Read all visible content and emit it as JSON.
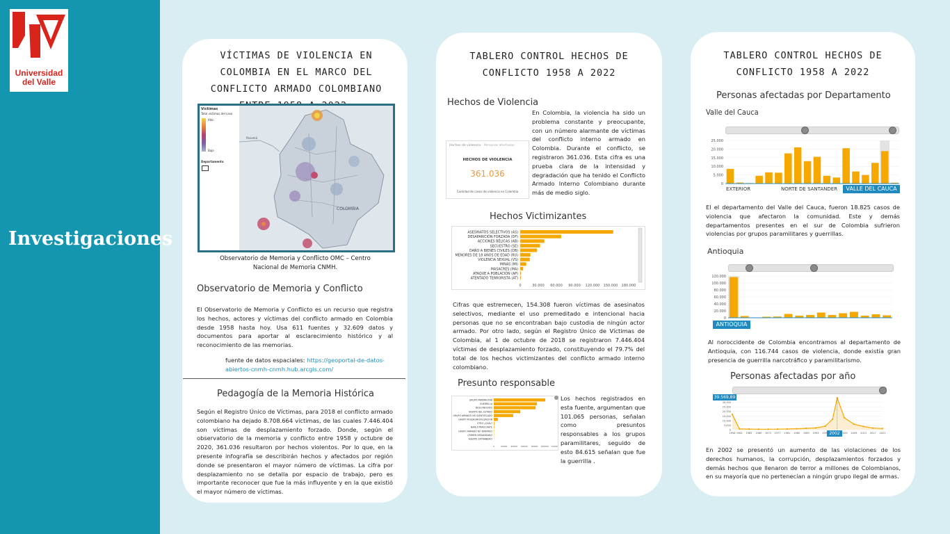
{
  "sidebar": {
    "logo_line1": "Universidad",
    "logo_line2": "del Valle",
    "title": "Investigaciones"
  },
  "panel1": {
    "title": "VÍCTIMAS DE VIOLENCIA EN COLOMBIA EN EL MARCO DEL CONFLICTO ARMADO COLOMBIANO ENTRE 1958 A 2022.",
    "map": {
      "legend_title": "Víctimas",
      "legend_sub": "Total víctimas del caso",
      "legend_high": "Alto",
      "legend_low": "Bajo",
      "legend_dept": "Departamento",
      "label_colombia": "COLOMBIA",
      "label_panama": "Panamá"
    },
    "caption": "Observatorio de Memoria y Conflicto OMC – Centro Nacional de Memoria CNMH.",
    "section1_heading": "Observatorio de Memoria y Conflicto",
    "section1_text": "El Observatorio de Memoria y Conflicto es un recurso que registra los hechos, actores y víctimas del conflicto armado en Colombia desde 1958 hasta hoy. Usa 611 fuentes y 32.609 datos y documentos para aportar al esclarecimiento histórico y al reconocimiento de las memorias.",
    "source_label": "fuente de datos espaciales: ",
    "source_link": "https://geoportal-de-datos-abiertos-cnmh-cnmh.hub.arcgis.com/",
    "section2_heading": "Pedagogía de la Memoria Histórica",
    "section2_text": "Según el Registro Único de Víctimas, para 2018 el conflicto armado colombiano ha dejado 8.708.664 víctimas, de las cuales 7.446.404 son víctimas de desplazamiento forzado. Donde, según el observatorio de la memoria y conflicto entre 1958 y octubre de 2020, 361.036 resultaron por hechos violentos. Por lo que, en la presente infografía se describirán hechos y afectados por región donde se presentaron el mayor número de víctimas. La cifra por desplazamiento no se detalla por espacio de trabajo, pero es importante reconocer que fue la más influyente y en la que existió el mayor número de víctimas."
  },
  "panel2": {
    "title": "TABLERO CONTROL HECHOS DE CONFLICTO 1958 A 2022",
    "hechos_heading": "Hechos de Violencia",
    "kpi_tab1": "Hechos de violencia",
    "kpi_tab2": "Personas afectadas",
    "kpi_label": "HECHOS DE VIOLENCIA",
    "kpi_value": "361.036",
    "kpi_caption": "Cantidad de casos de violencia en Colombia",
    "hechos_text": "En Colombia, la violencia ha sido un problema constante y preocupante, con un número alarmante de víctimas del conflicto interno armado en Colombia. Durante el conflicto, se registraron 361.036. Esta cifra es una prueba clara de la intensidad y degradación que ha tenido el Conflicto Armado Interno Colombiano durante más de medio siglo.",
    "victimizantes_heading": "Hechos Victimizantes",
    "victimizantes_text": "Cifras que estremecen, 154.308 fueron víctimas de asesinatos selectivos, mediante el uso premeditado e intencional hacia personas que no se encontraban bajo custodia de ningún actor armado. Por otro lado, según el Registro Único de Víctimas de Colombia, al 1 de octubre de 2018 se registraron 7.446.404 víctimas de desplazamiento forzado, constituyendo el 79.7% del total de los hechos victimizantes del conflicto armado interno colombiano.",
    "responsable_heading": "Presunto responsable",
    "responsable_text": "Los hechos registrados en esta fuente, argumentan que 101.065 personas, señalan como presuntos responsables a los grupos paramilitares, seguido de esto 84.615 señalan que fue la guerrilla ."
  },
  "panel3": {
    "title": "TABLERO CONTROL HECHOS DE CONFLICTO 1958 A 2022",
    "dept_heading": "Personas afectadas por Departamento",
    "valle_heading": "Valle del Cauca",
    "valle_label_left": "EXTERIOR",
    "valle_label_mid": "NORTE DE SANTANDER",
    "valle_tag": "VALLE DEL CAUCA",
    "valle_text": "El el departamento del Valle del Cauca, fueron 18.825 casos de violencia que afectaron la comunidad. Este y demás departamentos presentes en el sur de Colombia sufrieron violencias por grupos paramilitares y guerrillas.",
    "antioquia_heading": "Antioquia",
    "antioquia_tag": "ANTIOQUIA",
    "antioquia_text": "Al noroccidente de Colombia encontramos al departamento de Antioquia, con 116.744 casos de violencia, donde existía gran presencia de guerrilla narcotráfico y paramilitarismo.",
    "year_heading": "Personas afectadas por año",
    "year_peak_label": "39.569,89",
    "year_tag": "2002",
    "year_text": "En 2002 se presentó un aumento de las violaciones de los derechos humanos, la corrupción, desplazamientos forzados y demás hechos que llenaron de terror a millones de Colombianos, en su mayoría que no pertenecían a ningún grupo ilegal de armas."
  },
  "chart_data": [
    {
      "type": "bar",
      "orientation": "horizontal",
      "categories": [
        "ASESINATOS SELECTIVOS (AS)",
        "DESAPARICIÓN FORZADA (DF)",
        "ACCIONES BÉLICAS (AB)",
        "SECUESTRO (SE)",
        "DAÑO A BIENES CIVILES (DB)",
        "MENORES DE 18 AÑOS DE EDAD (RU)",
        "VIOLENCIA SEXUAL (VS)",
        "MINAS (MI)",
        "MASACRES (MA)",
        "ATAQUE A POBLACIÓN (AP)",
        "ATENTADO TERRORISTA (AT)"
      ],
      "values": [
        154308,
        68000,
        40000,
        33000,
        28000,
        17000,
        16000,
        10000,
        5000,
        1500,
        1200
      ],
      "xticks": [
        "0",
        "30.000",
        "60.000",
        "90.000",
        "120.000",
        "150.000",
        "180.000"
      ],
      "xlim": [
        0,
        180000
      ]
    },
    {
      "type": "bar",
      "orientation": "horizontal",
      "categories": [
        "GRUPO PARAMILITAR",
        "GUERRILLA",
        "DESCONOCIDO",
        "AGENTE DEL ESTADO",
        "GRUPO ARMADO NO IDENTIFICADO",
        "GRUPO POSDESMOVILIZACIÓN",
        "OTRO ¿CUÁL?",
        "NARCOTRAFICANTE",
        "GRUPO ARMADO NO DIRIMIDO",
        "CRIMEN ORGANIZADO",
        "AGENTE EXTRANJERO"
      ],
      "values": [
        101065,
        84615,
        82000,
        52000,
        38000,
        8000,
        1200,
        900,
        600,
        400,
        200
      ],
      "xticks": [
        "0",
        "20000",
        "40000",
        "60000",
        "80000",
        "100000",
        "120000"
      ],
      "xlim": [
        0,
        120000
      ]
    },
    {
      "type": "bar",
      "values": [
        8500,
        600,
        300,
        4500,
        6500,
        6300,
        17500,
        21000,
        13000,
        15500,
        4500,
        3500,
        20500,
        7000,
        5000,
        12000,
        18825,
        500
      ],
      "yticks": [
        "0",
        "5.000",
        "10.000",
        "15.000",
        "20.000",
        "25.000"
      ],
      "ylim": [
        0,
        25000
      ]
    },
    {
      "type": "bar",
      "values": [
        116744,
        5000,
        800,
        3000,
        3500,
        11000,
        6000,
        8000,
        15000,
        8000,
        13000,
        17000,
        6000,
        10000,
        7000
      ],
      "yticks": [
        "0",
        "20.000",
        "40.000",
        "60.000",
        "80.000",
        "100.000",
        "120.000"
      ],
      "ylim": [
        0,
        120000
      ]
    },
    {
      "type": "line",
      "x": [
        1958,
        1961,
        1965,
        1969,
        1973,
        1977,
        1981,
        1985,
        1989,
        1993,
        1997,
        2000,
        2002,
        2005,
        2009,
        2013,
        2017,
        2021
      ],
      "values": [
        19000,
        1000,
        800,
        600,
        600,
        700,
        900,
        1200,
        1700,
        2200,
        4500,
        13000,
        39569.89,
        15000,
        7000,
        4000,
        2000,
        1500
      ],
      "xticks": [
        "1958",
        "1961",
        "1965",
        "1969",
        "1973",
        "1977",
        "1981",
        "1985",
        "1989",
        "1993",
        "1997",
        "2002",
        "2005",
        "2009",
        "2013",
        "2017",
        "2021"
      ],
      "yticks": [
        "0",
        "5.000",
        "10.000",
        "15.000",
        "20.000",
        "25.000",
        "30.000",
        "35.000"
      ],
      "ylim": [
        0,
        40000
      ]
    }
  ]
}
